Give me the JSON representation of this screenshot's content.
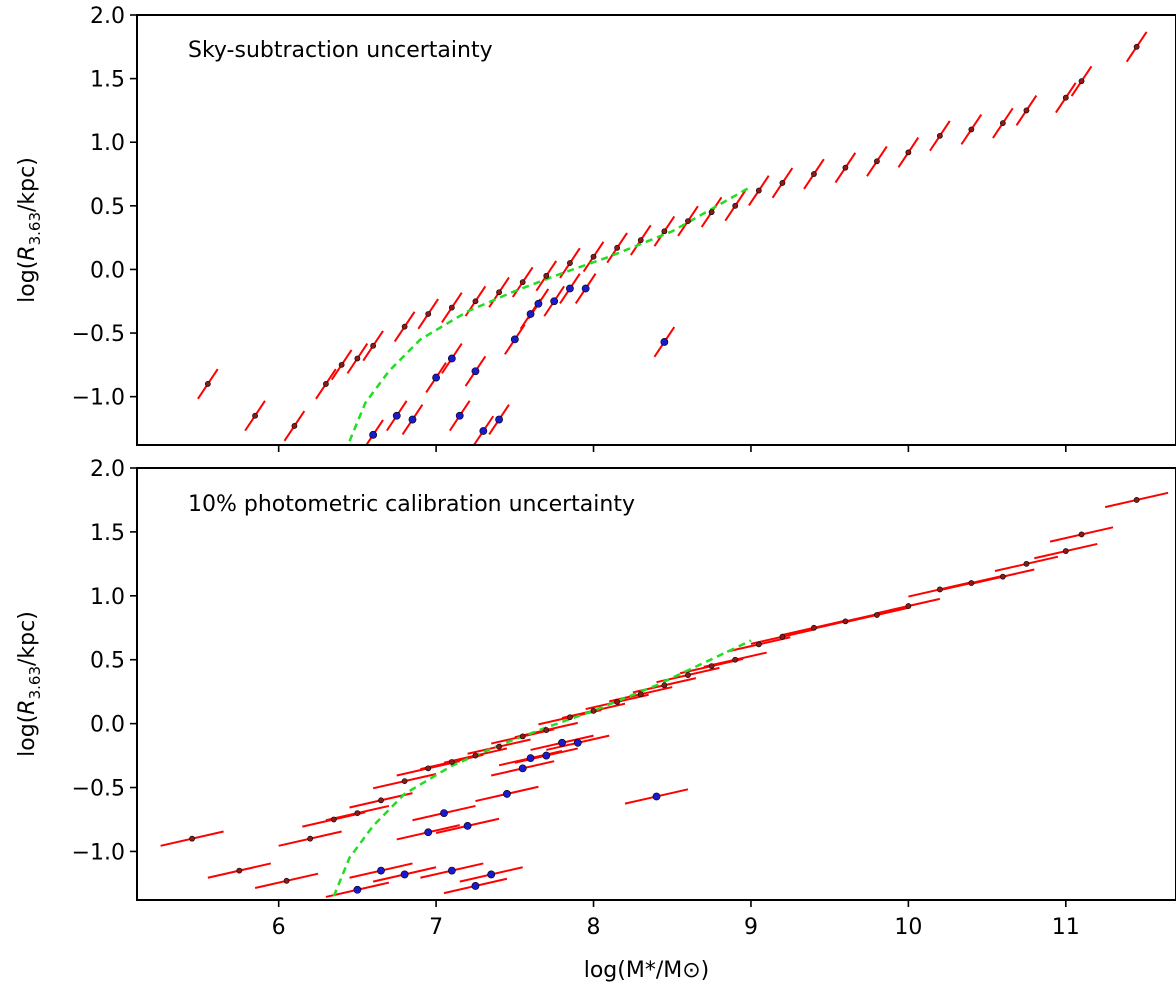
{
  "chart_data": [
    {
      "type": "scatter",
      "title": "Sky-subtraction uncertainty",
      "ylabel": "log(R_3.63/kpc)",
      "xlabel": "",
      "xlim": [
        5.1,
        11.7
      ],
      "ylim": [
        -1.38,
        2.0
      ],
      "yticks": [
        "2.0",
        "1.5",
        "1.0",
        "0.5",
        "0.0",
        "−0.5",
        "−1.0"
      ],
      "ytick_values": [
        2.0,
        1.5,
        1.0,
        0.5,
        0.0,
        -0.5,
        -1.0
      ],
      "xticks": [
        6,
        7,
        8,
        9,
        10,
        11
      ],
      "xtick_labels_shown": false,
      "grid": false,
      "error_segment_direction": [
        -0.35,
        -0.65
      ],
      "error_segment_length": 0.18,
      "dwarf_limit_curve": {
        "color": "#22dd22",
        "style": "dashed",
        "x": [
          6.45,
          6.55,
          6.7,
          6.9,
          7.2,
          7.5,
          7.8,
          8.1,
          8.5,
          9.0
        ],
        "y": [
          -1.35,
          -1.05,
          -0.8,
          -0.55,
          -0.33,
          -0.17,
          -0.03,
          0.1,
          0.3,
          0.65
        ]
      },
      "series": [
        {
          "color": "#8b1a1a",
          "x": [
            5.55,
            5.85,
            6.1,
            6.3,
            6.4,
            6.5,
            6.6,
            6.8,
            6.95,
            7.1,
            7.25,
            7.4,
            7.55,
            7.7,
            7.85,
            8.0,
            8.15,
            8.3,
            8.45,
            8.6,
            8.75,
            8.9,
            9.05,
            9.2,
            9.4,
            9.6,
            9.8,
            10.0,
            10.2,
            10.4,
            10.6,
            10.75,
            11.0,
            11.1,
            11.45
          ],
          "y": [
            -0.9,
            -1.15,
            -1.23,
            -0.9,
            -0.75,
            -0.7,
            -0.6,
            -0.45,
            -0.35,
            -0.3,
            -0.25,
            -0.18,
            -0.1,
            -0.05,
            0.05,
            0.1,
            0.17,
            0.23,
            0.3,
            0.38,
            0.45,
            0.5,
            0.62,
            0.68,
            0.75,
            0.8,
            0.85,
            0.92,
            1.05,
            1.1,
            1.15,
            1.25,
            1.35,
            1.48,
            1.75
          ]
        },
        {
          "color": "#1a1acc",
          "x": [
            6.6,
            6.75,
            6.85,
            7.0,
            7.1,
            7.15,
            7.25,
            7.3,
            7.4,
            7.5,
            7.6,
            7.65,
            7.75,
            7.85,
            7.95,
            8.45
          ],
          "y": [
            -1.3,
            -1.15,
            -1.18,
            -0.85,
            -0.7,
            -1.15,
            -0.8,
            -1.27,
            -1.18,
            -0.55,
            -0.35,
            -0.27,
            -0.25,
            -0.15,
            -0.15,
            -0.57
          ]
        }
      ]
    },
    {
      "type": "scatter",
      "title": "10% photometric calibration uncertainty",
      "ylabel": "log(R_3.63/kpc)",
      "xlabel": "log(M*/M⊙)",
      "xlim": [
        5.1,
        11.7
      ],
      "ylim": [
        -1.38,
        2.0
      ],
      "yticks": [
        "2.0",
        "1.5",
        "1.0",
        "0.5",
        "0.0",
        "−0.5",
        "−1.0"
      ],
      "ytick_values": [
        2.0,
        1.5,
        1.0,
        0.5,
        0.0,
        -0.5,
        -1.0
      ],
      "xticks": [
        "6",
        "7",
        "8",
        "9",
        "10",
        "11"
      ],
      "xtick_values": [
        6,
        7,
        8,
        9,
        10,
        11
      ],
      "grid": false,
      "error_segment_direction": [
        1.0,
        0.28
      ],
      "error_segment_length": 0.2,
      "dwarf_limit_curve": {
        "color": "#22dd22",
        "style": "dashed",
        "x": [
          6.35,
          6.45,
          6.6,
          6.8,
          7.1,
          7.4,
          7.7,
          8.0,
          8.4,
          9.0
        ],
        "y": [
          -1.35,
          -1.05,
          -0.8,
          -0.55,
          -0.33,
          -0.17,
          -0.03,
          0.1,
          0.3,
          0.65
        ]
      },
      "series": [
        {
          "color": "#8b1a1a",
          "x": [
            5.45,
            5.75,
            6.05,
            6.2,
            6.35,
            6.5,
            6.65,
            6.8,
            6.95,
            7.1,
            7.25,
            7.4,
            7.55,
            7.7,
            7.85,
            8.0,
            8.15,
            8.3,
            8.45,
            8.6,
            8.75,
            8.9,
            9.05,
            9.2,
            9.4,
            9.6,
            9.8,
            10.0,
            10.2,
            10.4,
            10.6,
            10.75,
            11.0,
            11.1,
            11.45
          ],
          "y": [
            -0.9,
            -1.15,
            -1.23,
            -0.9,
            -0.75,
            -0.7,
            -0.6,
            -0.45,
            -0.35,
            -0.3,
            -0.25,
            -0.18,
            -0.1,
            -0.05,
            0.05,
            0.1,
            0.17,
            0.23,
            0.3,
            0.38,
            0.45,
            0.5,
            0.62,
            0.68,
            0.75,
            0.8,
            0.85,
            0.92,
            1.05,
            1.1,
            1.15,
            1.25,
            1.35,
            1.48,
            1.75
          ]
        },
        {
          "color": "#1a1acc",
          "x": [
            6.5,
            6.65,
            6.8,
            6.95,
            7.05,
            7.1,
            7.2,
            7.25,
            7.35,
            7.45,
            7.55,
            7.6,
            7.7,
            7.8,
            7.9,
            8.4
          ],
          "y": [
            -1.3,
            -1.15,
            -1.18,
            -0.85,
            -0.7,
            -1.15,
            -0.8,
            -1.27,
            -1.18,
            -0.55,
            -0.35,
            -0.27,
            -0.25,
            -0.15,
            -0.15,
            -0.57
          ]
        }
      ]
    }
  ],
  "colors": {
    "error_segment": "#ff0000",
    "dwarf_limit": "#22dd22",
    "point_red": "#8b1a1a",
    "point_blue": "#1a1acc"
  }
}
